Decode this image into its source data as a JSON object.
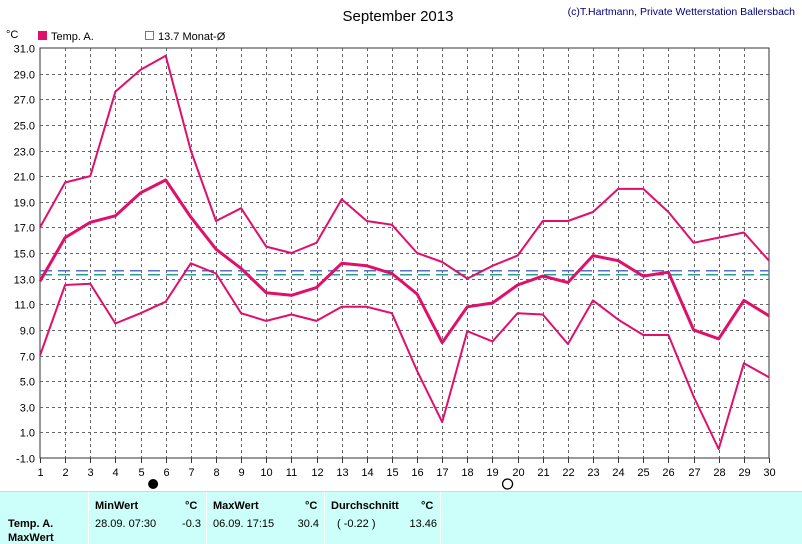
{
  "header": {
    "title": "September 2013",
    "credit": "(c)T.Hartmann, Private Wetterstation Ballersbach",
    "unit": "°C"
  },
  "legend": {
    "series_label": "Temp. A.",
    "avg_label": "13.7 Monat-Ø"
  },
  "colors": {
    "series": "#e0106a",
    "average_line_1": "#5a6fbf",
    "average_line_2": "#2a9b9b",
    "grid": "#666666"
  },
  "chart_data": {
    "type": "line",
    "title": "September 2013",
    "ylabel": "°C",
    "xlabel": "",
    "ylim": [
      -1.0,
      31.0
    ],
    "yticks": [
      -1.0,
      1.0,
      3.0,
      5.0,
      7.0,
      9.0,
      11.0,
      13.0,
      15.0,
      17.0,
      19.0,
      21.0,
      23.0,
      25.0,
      27.0,
      29.0,
      31.0
    ],
    "x": [
      1,
      2,
      3,
      4,
      5,
      6,
      7,
      8,
      9,
      10,
      11,
      12,
      13,
      14,
      15,
      16,
      17,
      18,
      19,
      20,
      21,
      22,
      23,
      24,
      25,
      26,
      27,
      28,
      29,
      30
    ],
    "grid": true,
    "series": [
      {
        "name": "Temp. A.",
        "role": "max",
        "values": [
          17.0,
          20.5,
          21.0,
          27.6,
          29.3,
          30.4,
          23.0,
          17.5,
          18.5,
          15.5,
          15.0,
          15.8,
          19.2,
          17.5,
          17.2,
          15.0,
          14.3,
          13.0,
          14.0,
          14.8,
          17.5,
          17.5,
          18.2,
          20.0,
          20.0,
          18.2,
          15.8,
          16.2,
          16.6,
          14.4
        ]
      },
      {
        "role": "mean",
        "values": [
          12.8,
          16.2,
          17.4,
          17.9,
          19.7,
          20.7,
          17.8,
          15.3,
          13.8,
          11.9,
          11.7,
          12.3,
          14.2,
          14.0,
          13.4,
          11.8,
          8.0,
          10.8,
          11.1,
          12.5,
          13.2,
          12.7,
          14.8,
          14.4,
          13.2,
          13.5,
          9.0,
          8.3,
          11.3,
          10.1
        ]
      },
      {
        "role": "min",
        "values": [
          7.0,
          12.5,
          12.6,
          9.5,
          10.3,
          11.2,
          14.2,
          13.4,
          10.3,
          9.7,
          10.2,
          9.7,
          10.8,
          10.8,
          10.3,
          5.8,
          1.8,
          8.9,
          8.1,
          10.3,
          10.2,
          7.9,
          11.3,
          9.8,
          8.6,
          8.6,
          3.8,
          -0.3,
          6.4,
          5.3
        ]
      }
    ],
    "average_line": 13.46,
    "moon_phases": [
      {
        "day": 5.5,
        "phase": "new"
      },
      {
        "day": 19.6,
        "phase": "full"
      }
    ]
  },
  "footer": {
    "row_label_1": "Temp. A.",
    "row_label_2": "MaxWert",
    "min_header": "MinWert",
    "min_unit": "°C",
    "min_datetime": "28.09.  07:30",
    "min_value": "-0.3",
    "max_header": "MaxWert",
    "max_unit": "°C",
    "max_datetime": "06.09.  17:15",
    "max_value": "30.4",
    "avg_header": "Durchschnitt",
    "avg_unit": "°C",
    "avg_delta": "( -0.22 )",
    "avg_value": "13.46"
  }
}
